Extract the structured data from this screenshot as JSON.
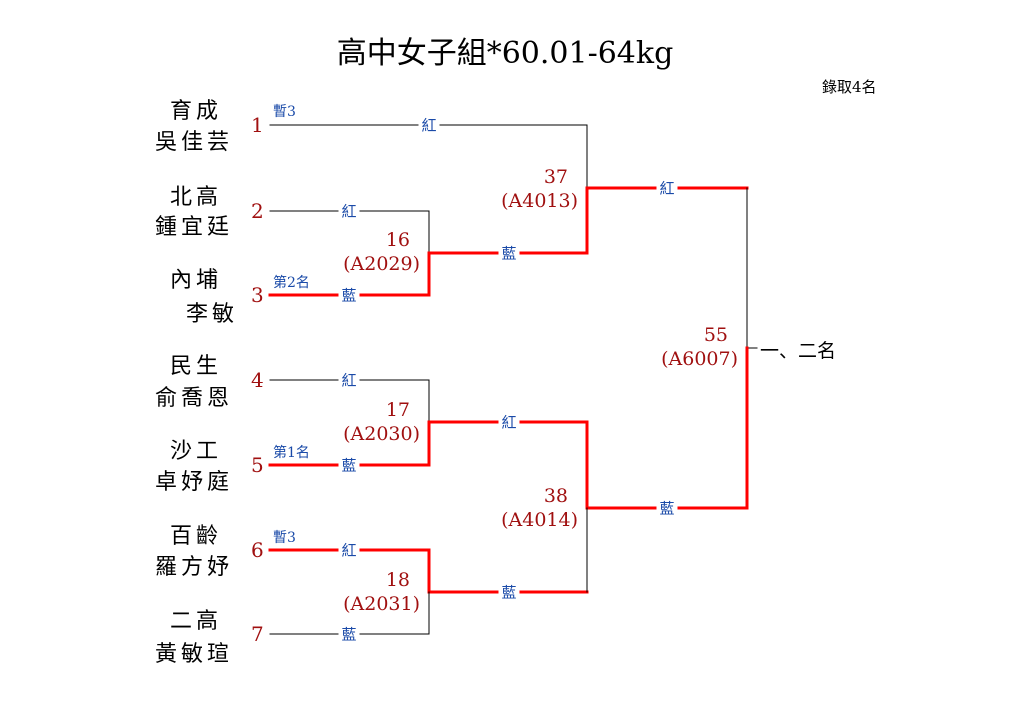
{
  "title": "高中女子組*60.01-64kg",
  "quota": "錄取4名",
  "colors": {
    "winner_line": "#ff0000",
    "line": "#000000",
    "seed": "#a01010",
    "corner": "#1a4aa8"
  },
  "corners": {
    "red": "紅",
    "blue": "藍"
  },
  "entrants": [
    {
      "seed": "1",
      "school": "育成",
      "name": "吳佳芸",
      "note": "暫3"
    },
    {
      "seed": "2",
      "school": "北高",
      "name": "鍾宜廷",
      "note": ""
    },
    {
      "seed": "3",
      "school": "內埔",
      "name": "李敏",
      "note": "第2名"
    },
    {
      "seed": "4",
      "school": "民生",
      "name": "俞喬恩",
      "note": ""
    },
    {
      "seed": "5",
      "school": "沙工",
      "name": "卓妤庭",
      "note": "第1名"
    },
    {
      "seed": "6",
      "school": "百齡",
      "name": "羅方妤",
      "note": "暫3"
    },
    {
      "seed": "7",
      "school": "二高",
      "name": "黃敏瑄",
      "note": ""
    }
  ],
  "matches": [
    {
      "number": "16",
      "code": "(A2029)",
      "red": "2",
      "blue": "3",
      "winner": "3"
    },
    {
      "number": "17",
      "code": "(A2030)",
      "red": "4",
      "blue": "5",
      "winner": "5"
    },
    {
      "number": "18",
      "code": "(A2031)",
      "red": "6",
      "blue": "7",
      "winner": "6"
    },
    {
      "number": "37",
      "code": "(A4013)",
      "red": "1",
      "blue": "winner 16",
      "winner": "blue"
    },
    {
      "number": "38",
      "code": "(A4014)",
      "red": "winner 17",
      "blue": "winner 18",
      "winner": "red"
    },
    {
      "number": "55",
      "code": "(A6007)",
      "red": "winner 37",
      "blue": "winner 38",
      "winner": "blue"
    }
  ],
  "final_result": "一、二名"
}
